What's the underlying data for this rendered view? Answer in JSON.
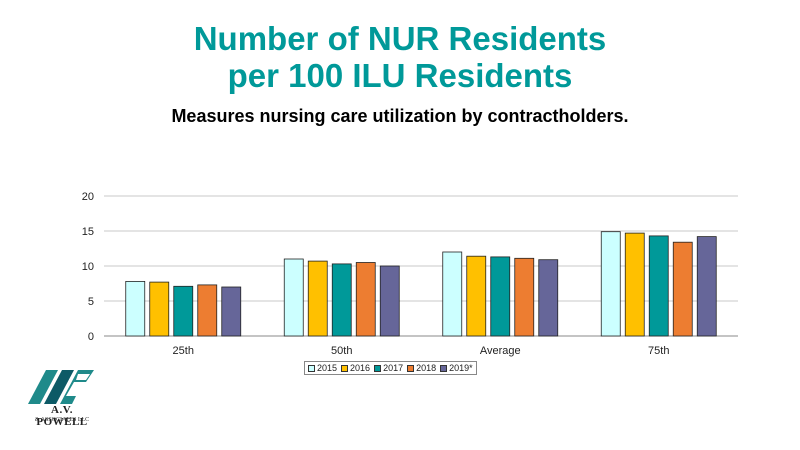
{
  "slide": {
    "title_line1": "Number of NUR Residents",
    "title_line2": "per 100 ILU Residents",
    "subtitle": "Measures nursing care utilization by contractholders."
  },
  "logo": {
    "name": "A.V. POWELL",
    "sub": "& ASSOCIATES LLC",
    "colors": [
      "#1f8a8a",
      "#0d5a66"
    ]
  },
  "chart_data": {
    "type": "bar",
    "categories": [
      "25th",
      "50th",
      "Average",
      "75th"
    ],
    "series": [
      {
        "name": "2015",
        "color": "#ccffff",
        "values": [
          7.8,
          11.0,
          12.0,
          14.9
        ]
      },
      {
        "name": "2016",
        "color": "#ffc000",
        "values": [
          7.7,
          10.7,
          11.4,
          14.7
        ]
      },
      {
        "name": "2017",
        "color": "#009999",
        "values": [
          7.1,
          10.3,
          11.3,
          14.3
        ]
      },
      {
        "name": "2018",
        "color": "#ed7d31",
        "values": [
          7.3,
          10.5,
          11.1,
          13.4
        ]
      },
      {
        "name": "2019*",
        "color": "#666699",
        "values": [
          7.0,
          10.0,
          10.9,
          14.2
        ]
      }
    ],
    "ylim": [
      0,
      20
    ],
    "yticks": [
      0,
      5,
      10,
      15,
      20
    ],
    "grid": true,
    "legend": "bottom"
  }
}
